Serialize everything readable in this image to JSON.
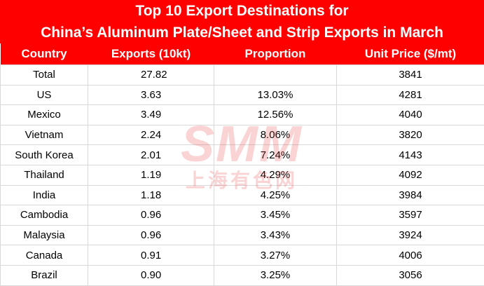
{
  "table": {
    "title": [
      "Top 10 Export Destinations for",
      "China’s Aluminum Plate/Sheet and Strip Exports in March"
    ],
    "header": [
      "Country",
      "Exports (10kt)",
      "Proportion",
      "Unit Price ($/mt)"
    ],
    "rows": [
      [
        "Total",
        "27.82",
        null,
        "3841"
      ],
      [
        "US",
        "3.63",
        "13.03%",
        "4281"
      ],
      [
        "Mexico",
        "3.49",
        "12.56%",
        "4040"
      ],
      [
        "Vietnam",
        "2.24",
        "8.06%",
        "3820"
      ],
      [
        "South Korea",
        "2.01",
        "7.24%",
        "4143"
      ],
      [
        "Thailand",
        "1.19",
        "4.29%",
        "4092"
      ],
      [
        "India",
        "1.18",
        "4.25%",
        "3984"
      ],
      [
        "Cambodia",
        "0.96",
        "3.45%",
        "3597"
      ],
      [
        "Malaysia",
        "0.96",
        "3.43%",
        "3924"
      ],
      [
        "Canada",
        "0.91",
        "3.27%",
        "4006"
      ],
      [
        "Brazil",
        "0.90",
        "3.25%",
        "3056"
      ]
    ],
    "watermark": [
      "SMM",
      "上海有色网"
    ]
  }
}
